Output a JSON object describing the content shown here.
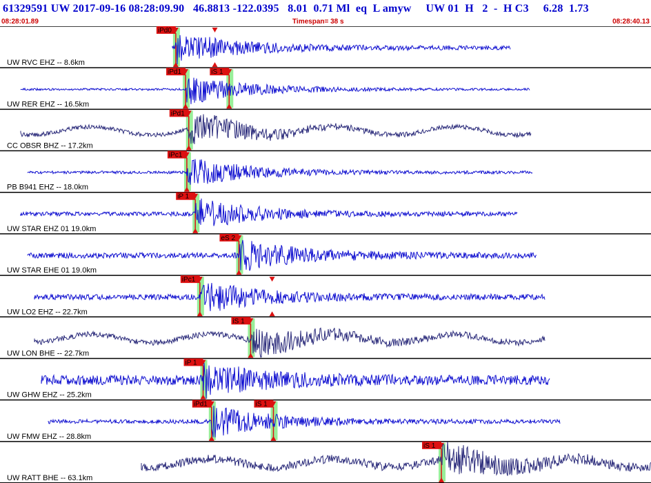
{
  "header": {
    "title_line": "61329591 UW 2017-09-16 08:28:09.90   46.8813 -122.0395   8.01  0.71 Ml  eq  L amyw     UW 01  H   2  -  H C3     6.28  1.73",
    "start_time": "08:28:01.89",
    "timespan": "Timespan=  38 s",
    "end_time": "08:28:40.13"
  },
  "colors": {
    "trace_blue": "#1010d0",
    "trace_dark": "#2a2a7a",
    "pick_red": "#dd1111",
    "window_green": "#99ee99",
    "header_blue": "#0000cc",
    "header_red": "#cc0000"
  },
  "channels": [
    {
      "label": "UW RVC EHZ -- 8.6km",
      "color": "blue",
      "picks": [
        {
          "label": "iPd0",
          "t": 0.27
        },
        {
          "label": "",
          "t": 0.33,
          "arrow_only": true
        }
      ]
    },
    {
      "label": "UW RER EHZ -- 16.5km",
      "color": "blue",
      "picks": [
        {
          "label": "iPd1",
          "t": 0.285
        },
        {
          "label": "iS 1",
          "t": 0.352
        }
      ]
    },
    {
      "label": "CC OBSR BHZ -- 17.2km",
      "color": "dark",
      "picks": [
        {
          "label": "iPd1",
          "t": 0.29
        }
      ]
    },
    {
      "label": "PB B941 EHZ -- 18.0km",
      "color": "blue",
      "picks": [
        {
          "label": "iPc1",
          "t": 0.287
        }
      ]
    },
    {
      "label": "UW STAR EHZ 01 19.0km",
      "color": "blue",
      "picks": [
        {
          "label": "iP 1",
          "t": 0.3
        }
      ]
    },
    {
      "label": "UW STAR EHE 01 19.0km",
      "color": "blue",
      "picks": [
        {
          "label": "eS 2",
          "t": 0.367
        }
      ]
    },
    {
      "label": "UW LO2 EHZ -- 22.7km",
      "color": "blue",
      "picks": [
        {
          "label": "iPc1",
          "t": 0.307
        },
        {
          "label": "",
          "t": 0.418,
          "arrow_only": true
        }
      ]
    },
    {
      "label": "UW LON BHE -- 22.7km",
      "color": "dark",
      "picks": [
        {
          "label": "iS 1",
          "t": 0.385
        }
      ]
    },
    {
      "label": "UW GHW EHZ -- 25.2km",
      "color": "blue",
      "picks": [
        {
          "label": "iP 1",
          "t": 0.312
        }
      ]
    },
    {
      "label": "UW FMW EHZ -- 28.8km",
      "color": "blue",
      "picks": [
        {
          "label": "iPd1",
          "t": 0.325
        },
        {
          "label": "iS 1",
          "t": 0.42
        }
      ]
    },
    {
      "label": "UW RATT BHE -- 63.1km",
      "color": "dark",
      "picks": [
        {
          "label": "iS 1",
          "t": 0.678
        }
      ]
    }
  ]
}
